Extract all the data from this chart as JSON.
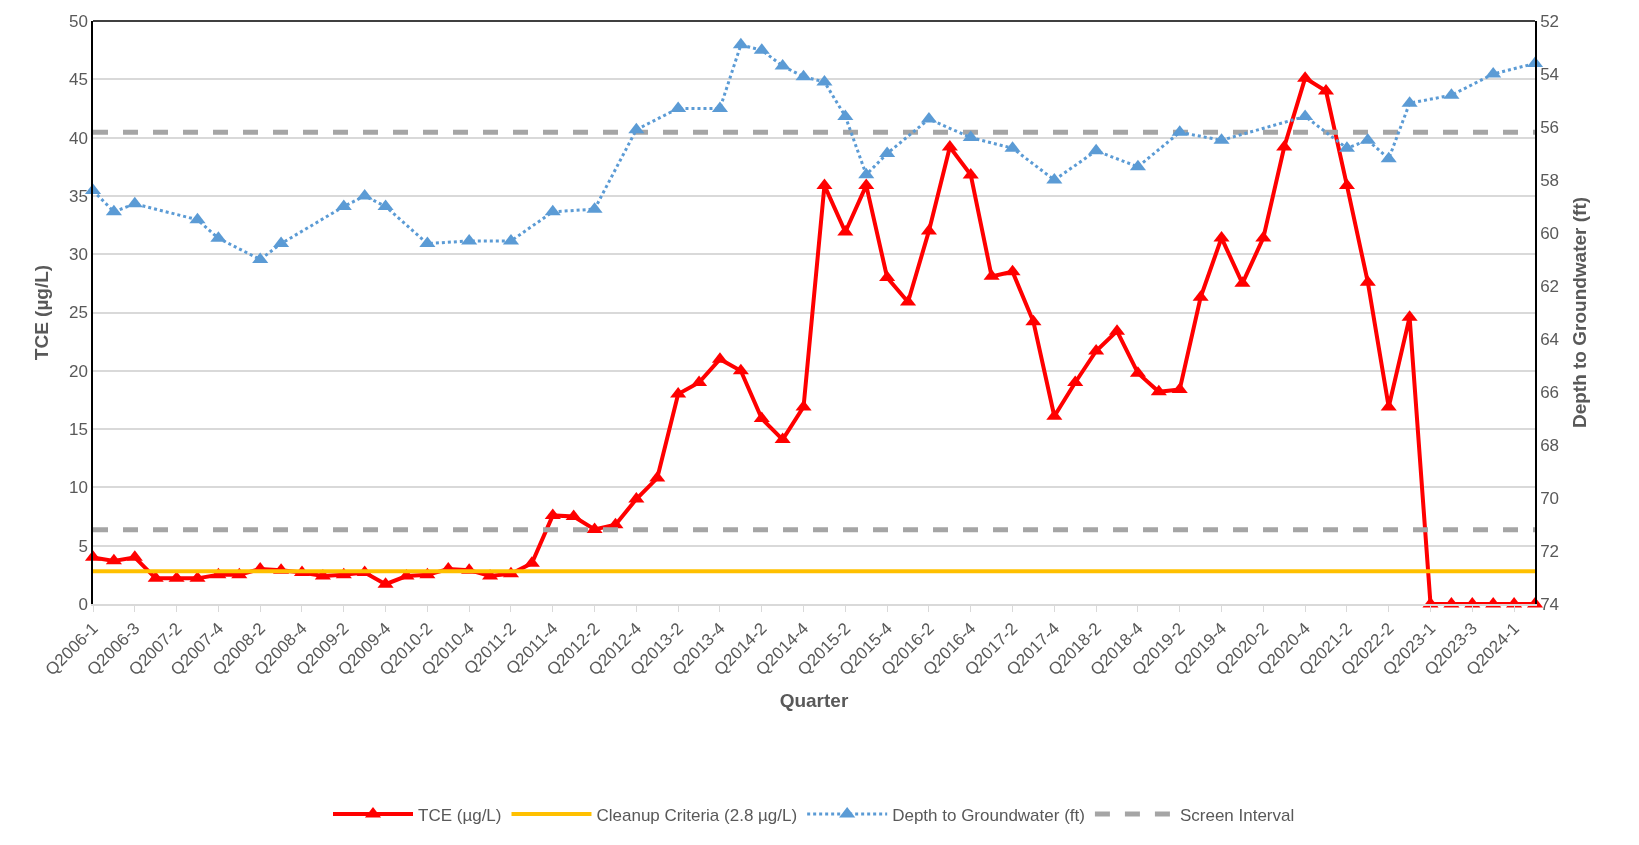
{
  "chart_data": {
    "type": "line",
    "xlabel": "Quarter",
    "ylabel": "TCE (µg/L)",
    "y2label": "Depth to Groundwater (ft)",
    "categories": [
      "Q2006-1",
      null,
      "Q2006-3",
      null,
      "Q2007-2",
      null,
      "Q2007-4",
      null,
      "Q2008-2",
      null,
      "Q2008-4",
      null,
      "Q2009-2",
      null,
      "Q2009-4",
      null,
      "Q2010-2",
      null,
      "Q2010-4",
      null,
      "Q2011-2",
      null,
      "Q2011-4",
      null,
      "Q2012-2",
      null,
      "Q2012-4",
      null,
      "Q2013-2",
      null,
      "Q2013-4",
      null,
      "Q2014-2",
      null,
      "Q2014-4",
      null,
      "Q2015-2",
      null,
      "Q2015-4",
      null,
      "Q2016-2",
      null,
      "Q2016-4",
      null,
      "Q2017-2",
      null,
      "Q2017-4",
      null,
      "Q2018-2",
      null,
      "Q2018-4",
      null,
      "Q2019-2",
      null,
      "Q2019-4",
      null,
      "Q2020-2",
      null,
      "Q2020-4",
      null,
      "Q2021-2",
      null,
      "Q2022-2",
      null,
      "Q2023-1",
      null,
      "Q2023-3",
      null,
      "Q2024-1",
      null
    ],
    "series": [
      {
        "name": "TCE (µg/L)",
        "color": "#ff0000",
        "marker": "triangle",
        "line_style": "solid",
        "values": [
          4.0,
          3.7,
          4.0,
          2.2,
          2.2,
          2.2,
          2.5,
          2.5,
          3.0,
          2.9,
          2.7,
          2.4,
          2.5,
          2.7,
          1.7,
          2.4,
          2.5,
          3.0,
          2.9,
          2.4,
          2.6,
          3.5,
          7.6,
          7.5,
          6.4,
          6.8,
          9.0,
          10.8,
          18.0,
          19.0,
          21.0,
          20.0,
          15.9,
          14.1,
          16.9,
          35.9,
          31.9,
          35.9,
          28.0,
          25.9,
          32.0,
          39.2,
          36.8,
          28.1,
          28.5,
          24.2,
          16.1,
          19.0,
          21.7,
          23.4,
          19.8,
          18.2,
          18.4,
          26.3,
          31.4,
          27.5,
          31.4,
          39.2,
          45.1,
          44.0,
          35.9,
          27.6,
          16.9,
          24.6,
          0,
          0,
          0,
          0,
          0,
          0
        ]
      },
      {
        "name": "Cleanup Criteria (2.8 µg/L)",
        "color": "#ffc000",
        "marker": "none",
        "line_style": "solid",
        "values": [
          2.8,
          2.8,
          2.8,
          2.8,
          2.8,
          2.8,
          2.8,
          2.8,
          2.8,
          2.8,
          2.8,
          2.8,
          2.8,
          2.8,
          2.8,
          2.8,
          2.8,
          2.8,
          2.8,
          2.8,
          2.8,
          2.8,
          2.8,
          2.8,
          2.8,
          2.8,
          2.8,
          2.8,
          2.8,
          2.8,
          2.8,
          2.8,
          2.8,
          2.8,
          2.8,
          2.8,
          2.8,
          2.8,
          2.8,
          2.8,
          2.8,
          2.8,
          2.8,
          2.8,
          2.8,
          2.8,
          2.8,
          2.8,
          2.8,
          2.8,
          2.8,
          2.8,
          2.8,
          2.8,
          2.8,
          2.8,
          2.8,
          2.8,
          2.8,
          2.8,
          2.8,
          2.8,
          2.8,
          2.8,
          2.8,
          2.8,
          2.8,
          2.8,
          2.8,
          2.8
        ]
      },
      {
        "name": "Depth to Groundwater (ft)",
        "color": "#5b9bd5",
        "marker": "triangle",
        "line_style": "dotted",
        "axis": "y2",
        "values": [
          58.4,
          59.2,
          58.9,
          null,
          null,
          59.5,
          60.2,
          null,
          61.0,
          60.4,
          null,
          null,
          59.0,
          58.6,
          59.0,
          null,
          60.4,
          null,
          60.3,
          null,
          60.3,
          null,
          59.2,
          null,
          59.1,
          null,
          56.1,
          null,
          55.3,
          null,
          55.3,
          52.9,
          53.1,
          53.7,
          54.1,
          54.3,
          55.6,
          57.8,
          57.0,
          null,
          55.7,
          null,
          56.4,
          null,
          56.8,
          null,
          58.0,
          null,
          56.9,
          null,
          57.5,
          null,
          56.2,
          null,
          56.5,
          null,
          null,
          null,
          55.6,
          null,
          56.8,
          56.5,
          57.2,
          55.1,
          null,
          54.8,
          null,
          54.0,
          null,
          53.6
        ]
      }
    ],
    "ref_lines": [
      {
        "axis": "y2",
        "value": 56.2,
        "label": "Screen Interval",
        "color": "#a5a5a5",
        "line_style": "dashed"
      },
      {
        "axis": "y2",
        "value": 71.2,
        "color": "#a5a5a5",
        "line_style": "dashed"
      }
    ],
    "ylim": [
      0,
      50
    ],
    "yticks": [
      0,
      5,
      10,
      15,
      20,
      25,
      30,
      35,
      40,
      45,
      50
    ],
    "y2lim": [
      74,
      52
    ],
    "y2ticks": [
      52,
      54,
      56,
      58,
      60,
      62,
      64,
      66,
      68,
      70,
      72,
      74
    ],
    "grid": "y",
    "legend": "bottom"
  }
}
